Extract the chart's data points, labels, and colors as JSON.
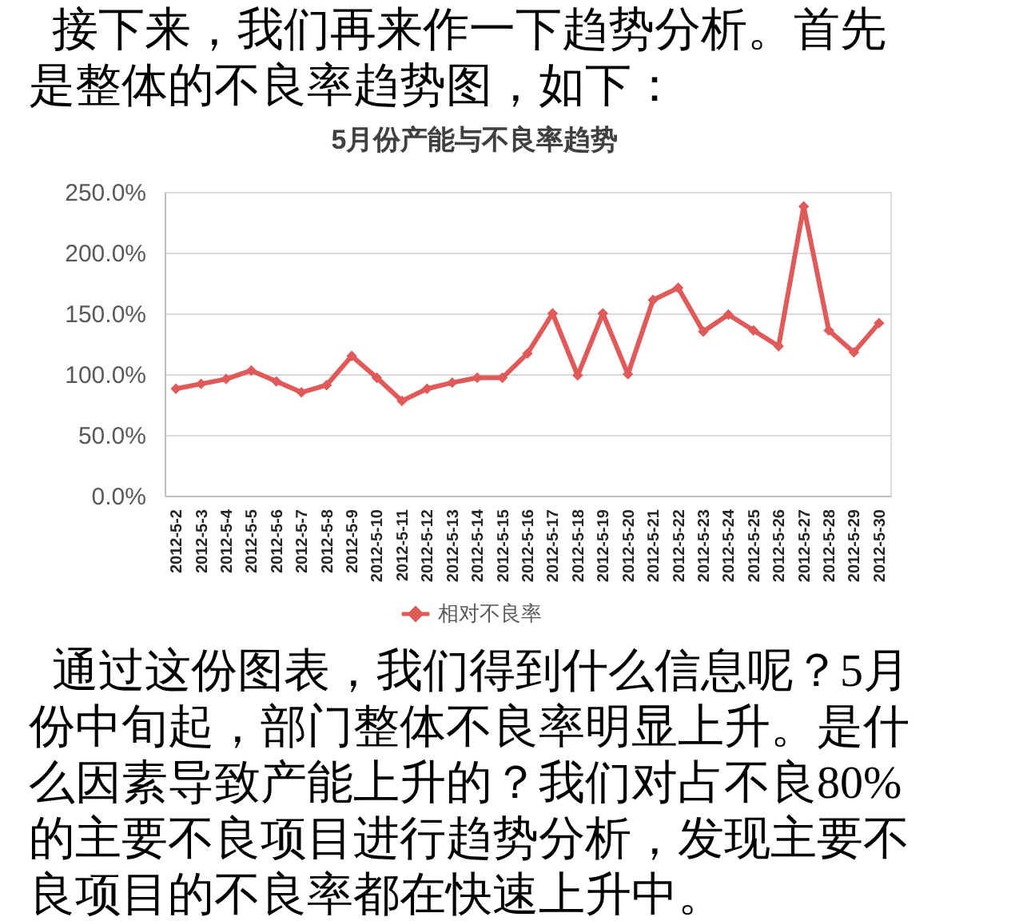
{
  "chart_data": {
    "type": "line",
    "title": "5月份产能与不良率趋势",
    "categories": [
      "2012-5-2",
      "2012-5-3",
      "2012-5-4",
      "2012-5-5",
      "2012-5-6",
      "2012-5-7",
      "2012-5-8",
      "2012-5-9",
      "2012-5-10",
      "2012-5-11",
      "2012-5-12",
      "2012-5-13",
      "2012-5-14",
      "2012-5-15",
      "2012-5-16",
      "2012-5-17",
      "2012-5-18",
      "2012-5-19",
      "2012-5-20",
      "2012-5-21",
      "2012-5-22",
      "2012-5-23",
      "2012-5-24",
      "2012-5-25",
      "2012-5-26",
      "2012-5-27",
      "2012-5-28",
      "2012-5-29",
      "2012-5-30"
    ],
    "series": [
      {
        "name": "相对不良率",
        "color": "#e05a5a",
        "values": [
          88,
          92,
          96,
          103,
          94,
          85,
          91,
          115,
          97,
          78,
          88,
          93,
          97,
          97,
          117,
          150,
          99,
          150,
          100,
          161,
          171,
          135,
          149,
          136,
          123,
          238,
          136,
          118,
          142
        ]
      }
    ],
    "ylim": [
      0,
      250
    ],
    "yticks": [
      {
        "value": 0,
        "label": "0.0%"
      },
      {
        "value": 50,
        "label": "50.0%"
      },
      {
        "value": 100,
        "label": "100.0%"
      },
      {
        "value": 150,
        "label": "150.0%"
      },
      {
        "value": 200,
        "label": "200.0%"
      },
      {
        "value": 250,
        "label": "250.0%"
      }
    ],
    "grid": "y",
    "legend": "bottom",
    "marker": "diamond",
    "line_style": "solid",
    "annotations": [
      "接下来，我们再来作一下趋势分析。首先是整体的不良率趋势图，如下：",
      "通过这份图表，我们得到什么信息呢？5月份中旬起，部门整体不良率明显上升。是什么因素导致产能上升的？我们对占不良80%的主要不良项目进行趋势分析，发现主要不良项目的不良率都在快速上升中。"
    ]
  }
}
